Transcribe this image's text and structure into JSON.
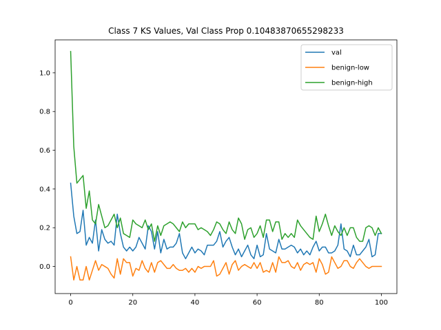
{
  "chart_data": {
    "type": "line",
    "title": "Class 7 KS Values, Val Class Prop 0.10483870655298233",
    "xlabel": "",
    "ylabel": "",
    "xlim": [
      -5,
      105
    ],
    "ylim": [
      -0.14,
      1.17
    ],
    "xticks": [
      0,
      20,
      40,
      60,
      80,
      100
    ],
    "yticks": [
      0.0,
      0.2,
      0.4,
      0.6,
      0.8,
      1.0
    ],
    "xtick_labels": [
      "0",
      "20",
      "40",
      "60",
      "80",
      "100"
    ],
    "ytick_labels": [
      "0.0",
      "0.2",
      "0.4",
      "0.6",
      "0.8",
      "1.0"
    ],
    "grid": false,
    "legend": "top-right",
    "x": [
      0,
      1,
      2,
      3,
      4,
      5,
      6,
      7,
      8,
      9,
      10,
      11,
      12,
      13,
      14,
      15,
      16,
      17,
      18,
      19,
      20,
      21,
      22,
      23,
      24,
      25,
      26,
      27,
      28,
      29,
      30,
      31,
      32,
      33,
      34,
      35,
      36,
      37,
      38,
      39,
      40,
      41,
      42,
      43,
      44,
      45,
      46,
      47,
      48,
      49,
      50,
      51,
      52,
      53,
      54,
      55,
      56,
      57,
      58,
      59,
      60,
      61,
      62,
      63,
      64,
      65,
      66,
      67,
      68,
      69,
      70,
      71,
      72,
      73,
      74,
      75,
      76,
      77,
      78,
      79,
      80,
      81,
      82,
      83,
      84,
      85,
      86,
      87,
      88,
      89,
      90,
      91,
      92,
      93,
      94,
      95,
      96,
      97,
      98,
      99,
      100
    ],
    "series": [
      {
        "name": "val",
        "color": "#1f77b4",
        "values": [
          0.43,
          0.26,
          0.17,
          0.18,
          0.29,
          0.11,
          0.15,
          0.12,
          0.24,
          0.08,
          0.19,
          0.14,
          0.12,
          0.13,
          0.11,
          0.27,
          0.17,
          0.1,
          0.08,
          0.1,
          0.08,
          0.1,
          0.15,
          0.12,
          0.09,
          0.21,
          0.18,
          0.09,
          0.18,
          0.07,
          0.14,
          0.09,
          0.1,
          0.1,
          0.12,
          0.17,
          0.07,
          0.04,
          0.07,
          0.1,
          0.07,
          0.09,
          0.08,
          0.06,
          0.11,
          0.11,
          0.11,
          0.13,
          0.18,
          0.1,
          0.13,
          0.15,
          0.1,
          0.06,
          0.09,
          0.05,
          0.08,
          0.11,
          0.06,
          0.04,
          0.11,
          0.05,
          0.06,
          0.17,
          0.09,
          0.08,
          0.07,
          0.14,
          0.09,
          0.09,
          0.1,
          0.11,
          0.1,
          0.07,
          0.09,
          0.06,
          0.08,
          0.06,
          0.1,
          0.13,
          0.08,
          0.1,
          0.1,
          0.07,
          0.07,
          0.08,
          0.11,
          0.22,
          0.09,
          0.08,
          0.05,
          0.11,
          0.06,
          0.06,
          0.08,
          0.1,
          0.14,
          0.05,
          0.06,
          0.17,
          0.17
        ]
      },
      {
        "name": "benign-low",
        "color": "#ff7f0e",
        "values": [
          0.05,
          -0.07,
          0.0,
          -0.07,
          -0.07,
          0.0,
          -0.07,
          -0.02,
          0.03,
          -0.02,
          0.01,
          0.0,
          -0.01,
          -0.04,
          -0.06,
          0.04,
          -0.04,
          0.04,
          0.02,
          0.02,
          -0.05,
          -0.01,
          -0.02,
          0.03,
          -0.01,
          -0.03,
          0.02,
          -0.03,
          0.02,
          0.03,
          0.01,
          -0.01,
          -0.01,
          0.01,
          -0.01,
          -0.02,
          -0.02,
          -0.01,
          -0.03,
          -0.01,
          -0.03,
          0.0,
          -0.01,
          0.0,
          0.0,
          0.0,
          0.03,
          -0.05,
          -0.04,
          -0.01,
          0.02,
          -0.04,
          0.01,
          0.03,
          -0.02,
          0.0,
          0.01,
          0.0,
          -0.01,
          0.02,
          -0.01,
          0.02,
          -0.03,
          -0.02,
          -0.03,
          0.02,
          -0.03,
          0.05,
          0.02,
          0.02,
          0.03,
          0.0,
          -0.01,
          0.02,
          -0.02,
          0.01,
          0.02,
          0.01,
          0.02,
          -0.03,
          0.04,
          0.01,
          -0.04,
          -0.03,
          0.05,
          0.02,
          -0.01,
          0.0,
          0.03,
          0.03,
          0.0,
          -0.01,
          0.02,
          0.04,
          0.02,
          0.0,
          -0.01,
          0.0,
          0.0,
          0.0,
          0.0
        ]
      },
      {
        "name": "benign-high",
        "color": "#2ca02c",
        "values": [
          1.11,
          0.62,
          0.43,
          0.45,
          0.47,
          0.3,
          0.39,
          0.24,
          0.22,
          0.32,
          0.26,
          0.2,
          0.21,
          0.24,
          0.27,
          0.2,
          0.25,
          0.17,
          0.16,
          0.15,
          0.24,
          0.22,
          0.21,
          0.2,
          0.24,
          0.19,
          0.22,
          0.13,
          0.21,
          0.16,
          0.21,
          0.22,
          0.23,
          0.22,
          0.2,
          0.18,
          0.23,
          0.2,
          0.22,
          0.22,
          0.22,
          0.19,
          0.2,
          0.19,
          0.18,
          0.16,
          0.19,
          0.23,
          0.22,
          0.19,
          0.17,
          0.23,
          0.19,
          0.17,
          0.25,
          0.22,
          0.14,
          0.19,
          0.2,
          0.15,
          0.17,
          0.21,
          0.15,
          0.24,
          0.24,
          0.18,
          0.23,
          0.23,
          0.14,
          0.17,
          0.15,
          0.17,
          0.15,
          0.24,
          0.21,
          0.19,
          0.17,
          0.15,
          0.14,
          0.26,
          0.18,
          0.22,
          0.27,
          0.21,
          0.16,
          0.21,
          0.18,
          0.16,
          0.2,
          0.16,
          0.2,
          0.2,
          0.15,
          0.13,
          0.13,
          0.2,
          0.21,
          0.2,
          0.16,
          0.2,
          0.17
        ]
      }
    ]
  }
}
